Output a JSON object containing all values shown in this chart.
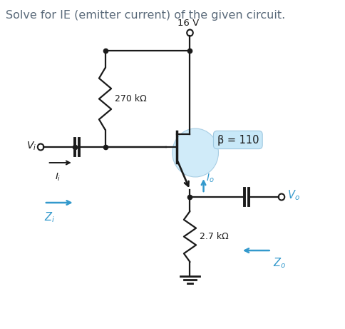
{
  "title": "Solve for IE (emitter current) of the given circuit.",
  "title_color": "#5a6a7a",
  "title_fontsize": 11.5,
  "background_color": "#ffffff",
  "voltage_label": "16 V",
  "r1_label": "270 kΩ",
  "r2_label": "2.7 kΩ",
  "beta_label": "β = 110",
  "transistor_circle_color": "#c8e8f8",
  "beta_box_color": "#c8e8f8",
  "wire_color": "#1a1a1a",
  "arrow_color": "#3399cc",
  "node_color": "#1a1a1a"
}
